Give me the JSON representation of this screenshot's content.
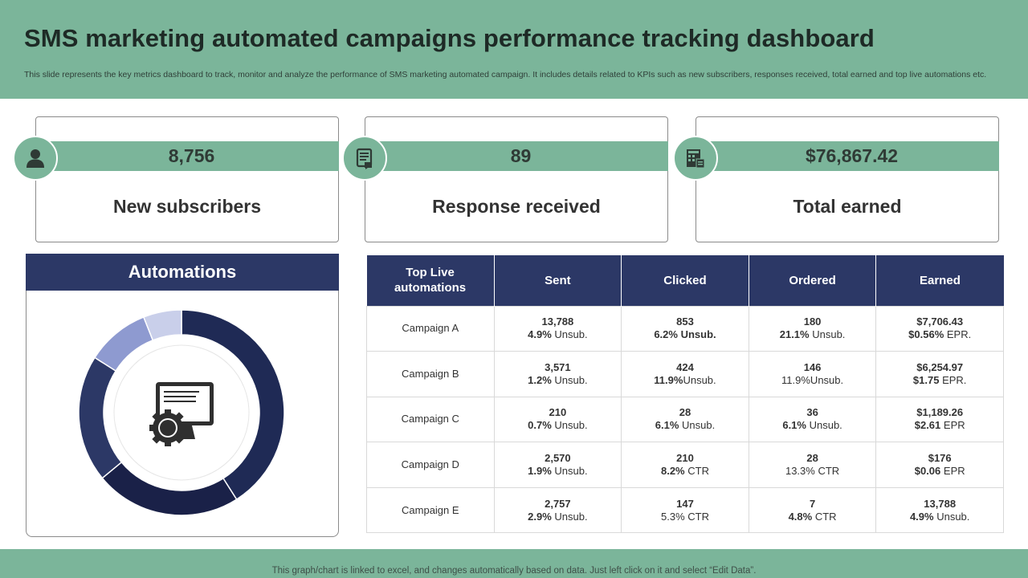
{
  "header": {
    "title": "SMS marketing automated campaigns performance tracking dashboard",
    "subtitle": "This slide represents the key metrics dashboard to track, monitor and analyze the performance of SMS  marketing automated campaign. It includes details related to KPIs such as new subscribers, responses received, total earned and top live  automations etc."
  },
  "kpis": [
    {
      "value": "8,756",
      "label": "New subscribers",
      "icon": "user-icon"
    },
    {
      "value": "89",
      "label": "Response received",
      "icon": "message-icon"
    },
    {
      "value": "$76,867.42",
      "label": "Total earned",
      "icon": "calculator-icon"
    }
  ],
  "automations": {
    "title": "Automations",
    "icon": "monitor-gear-icon",
    "segments": [
      {
        "share": 0.41,
        "color": "#1f2a55"
      },
      {
        "share": 0.23,
        "color": "#1a2148"
      },
      {
        "share": 0.2,
        "color": "#2c3866"
      },
      {
        "share": 0.1,
        "color": "#8e9ad0"
      },
      {
        "share": 0.06,
        "color": "#c9cfea"
      }
    ]
  },
  "table": {
    "headers": [
      "Top Live automations",
      "Sent",
      "Clicked",
      "Ordered",
      "Earned"
    ],
    "rows": [
      {
        "name": "Campaign  A",
        "sent": [
          "13,788",
          "4.9%",
          " Unsub."
        ],
        "clicked": [
          "853",
          "6.2% Unsub.",
          ""
        ],
        "ordered": [
          "180",
          "21.1%",
          " Unsub."
        ],
        "earned": [
          "$7,706.43",
          "$0.56%",
          " EPR."
        ]
      },
      {
        "name": "Campaign  B",
        "sent": [
          "3,571",
          "1.2%",
          " Unsub."
        ],
        "clicked": [
          "424",
          "11.9%",
          "Unsub."
        ],
        "ordered": [
          "146",
          "",
          "11.9%Unsub."
        ],
        "earned": [
          "$6,254.97",
          "$1.75",
          " EPR."
        ]
      },
      {
        "name": "Campaign  C",
        "sent": [
          "210",
          "0.7%",
          " Unsub."
        ],
        "clicked": [
          "28",
          "6.1%",
          " Unsub."
        ],
        "ordered": [
          "36",
          "6.1%",
          " Unsub."
        ],
        "earned": [
          "$1,189.26",
          "$2.61",
          " EPR"
        ]
      },
      {
        "name": "Campaign  D",
        "sent": [
          "2,570",
          "1.9%",
          " Unsub."
        ],
        "clicked": [
          "210",
          "8.2%",
          " CTR"
        ],
        "ordered": [
          "28",
          "",
          "13.3%  CTR"
        ],
        "earned": [
          "$176",
          "$0.06",
          " EPR"
        ]
      },
      {
        "name": "Campaign  E",
        "sent": [
          "2,757",
          "2.9%",
          " Unsub."
        ],
        "clicked": [
          "147",
          "",
          "5.3%  CTR"
        ],
        "ordered": [
          "7",
          "4.8%",
          " CTR"
        ],
        "earned": [
          "13,788",
          "4.9%",
          " Unsub."
        ]
      }
    ]
  },
  "footer": {
    "note": "This graph/chart is linked to excel,  and changes automatically based on data. Just left click on it and select “Edit Data”."
  }
}
